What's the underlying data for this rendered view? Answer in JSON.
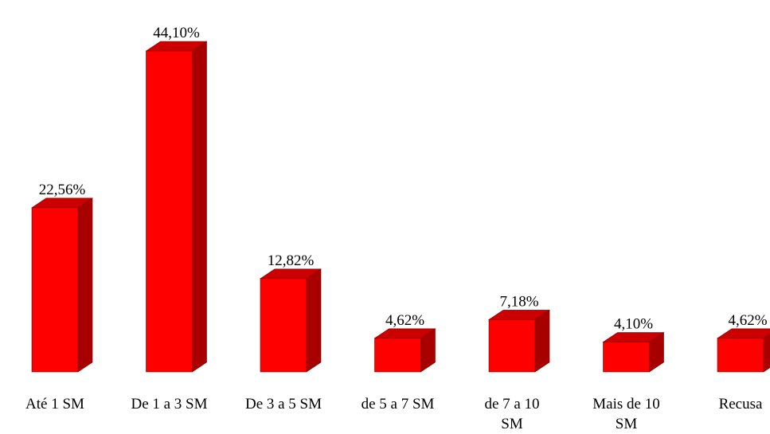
{
  "chart_data": {
    "type": "bar",
    "style": "3d",
    "title": "",
    "xlabel": "",
    "ylabel": "",
    "categories": [
      [
        "Até 1 SM"
      ],
      [
        "De 1 a 3 SM"
      ],
      [
        "De 3 a 5 SM"
      ],
      [
        "de 5 a 7 SM"
      ],
      [
        "de 7 a 10",
        "SM"
      ],
      [
        "Mais de 10",
        "SM"
      ],
      [
        "Recusa"
      ]
    ],
    "values": [
      22.56,
      44.1,
      12.82,
      4.62,
      7.18,
      4.1,
      4.62
    ],
    "data_labels": [
      "22,56%",
      "44,10%",
      "12,82%",
      "4,62%",
      "7,18%",
      "4,10%",
      "4,62%"
    ],
    "unit": "%",
    "ylim": [
      0,
      44.1
    ],
    "grid": false,
    "legend": "none",
    "colors": {
      "front": "#ff0000",
      "side": "#a80000",
      "top": "#cc0000",
      "edge": "#7a0000"
    }
  }
}
